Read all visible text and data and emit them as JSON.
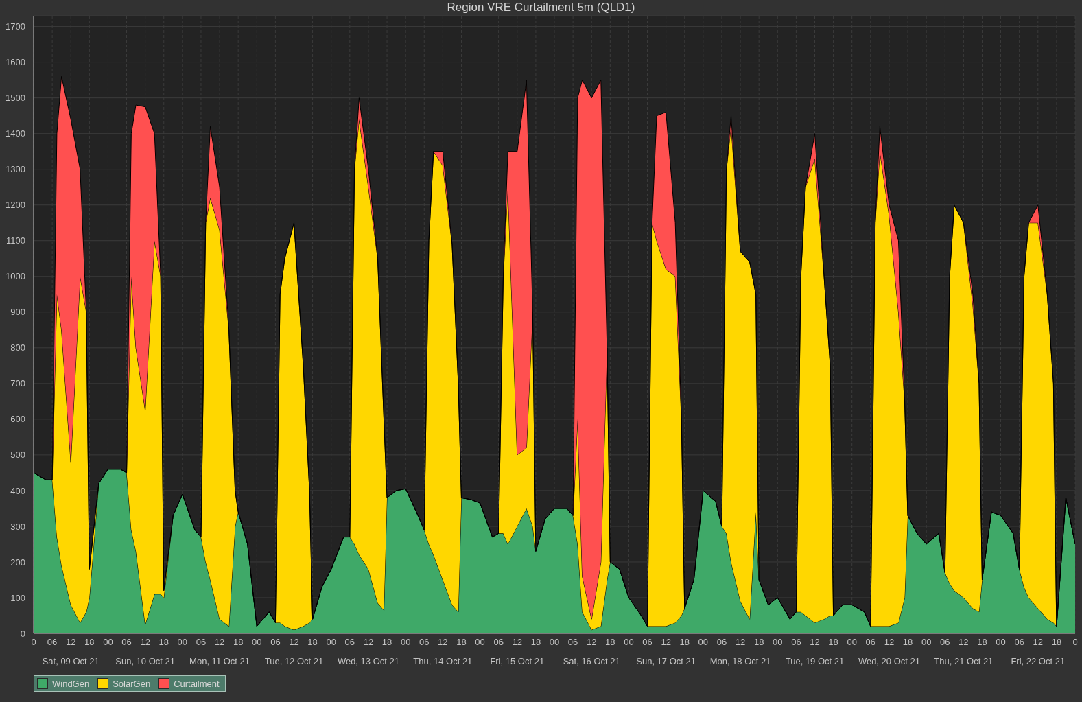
{
  "chart_data": {
    "type": "area",
    "title": "Region VRE Curtailment 5m (QLD1)",
    "stacked": true,
    "grid": true,
    "legend": "bottom left",
    "x": [
      "--10-09T00:00",
      "--10-09T04:00",
      "--10-09T06:00",
      "--10-09T07:30",
      "--10-09T09:00",
      "--10-09T12:00",
      "--10-09T15:00",
      "--10-09T17:00",
      "--10-09T18:00",
      "--10-09T21:00",
      "--10-10T00:00",
      "--10-10T04:00",
      "--10-10T06:00",
      "--10-10T07:30",
      "--10-10T09:00",
      "--10-10T12:00",
      "--10-10T15:00",
      "--10-10T17:00",
      "--10-10T18:00",
      "--10-10T21:00",
      "--10-11T00:00",
      "--10-11T04:00",
      "--10-11T06:00",
      "--10-11T07:30",
      "--10-11T09:00",
      "--10-11T12:00",
      "--10-11T15:00",
      "--10-11T17:00",
      "--10-11T18:00",
      "--10-11T21:00",
      "--10-12T00:00",
      "--10-12T04:00",
      "--10-12T06:00",
      "--10-12T07:30",
      "--10-12T09:00",
      "--10-12T12:00",
      "--10-12T15:00",
      "--10-12T17:00",
      "--10-12T18:00",
      "--10-12T21:00",
      "--10-13T00:00",
      "--10-13T04:00",
      "--10-13T06:00",
      "--10-13T07:30",
      "--10-13T09:00",
      "--10-13T12:00",
      "--10-13T15:00",
      "--10-13T17:00",
      "--10-13T18:00",
      "--10-13T21:00",
      "--10-14T00:00",
      "--10-14T04:00",
      "--10-14T06:00",
      "--10-14T07:30",
      "--10-14T09:00",
      "--10-14T12:00",
      "--10-14T15:00",
      "--10-14T17:00",
      "--10-14T18:00",
      "--10-14T21:00",
      "--10-15T00:00",
      "--10-15T04:00",
      "--10-15T06:00",
      "--10-15T07:30",
      "--10-15T09:00",
      "--10-15T12:00",
      "--10-15T15:00",
      "--10-15T17:00",
      "--10-15T18:00",
      "--10-15T21:00",
      "--10-16T00:00",
      "--10-16T04:00",
      "--10-16T06:00",
      "--10-16T07:30",
      "--10-16T09:00",
      "--10-16T12:00",
      "--10-16T15:00",
      "--10-16T17:00",
      "--10-16T18:00",
      "--10-16T21:00",
      "--10-17T00:00",
      "--10-17T04:00",
      "--10-17T06:00",
      "--10-17T07:30",
      "--10-17T09:00",
      "--10-17T12:00",
      "--10-17T15:00",
      "--10-17T17:00",
      "--10-17T18:00",
      "--10-17T21:00",
      "--10-18T00:00",
      "--10-18T04:00",
      "--10-18T06:00",
      "--10-18T07:30",
      "--10-18T09:00",
      "--10-18T12:00",
      "--10-18T15:00",
      "--10-18T17:00",
      "--10-18T18:00",
      "--10-18T21:00",
      "--10-19T00:00",
      "--10-19T04:00",
      "--10-19T06:00",
      "--10-19T07:30",
      "--10-19T09:00",
      "--10-19T12:00",
      "--10-19T15:00",
      "--10-19T17:00",
      "--10-19T18:00",
      "--10-19T21:00",
      "--10-20T00:00",
      "--10-20T04:00",
      "--10-20T06:00",
      "--10-20T07:30",
      "--10-20T09:00",
      "--10-20T12:00",
      "--10-20T15:00",
      "--10-20T17:00",
      "--10-20T18:00",
      "--10-20T21:00",
      "--10-21T00:00",
      "--10-21T04:00",
      "--10-21T06:00",
      "--10-21T07:30",
      "--10-21T09:00",
      "--10-21T12:00",
      "--10-21T15:00",
      "--10-21T17:00",
      "--10-21T18:00",
      "--10-21T21:00",
      "--10-22T00:00",
      "--10-22T04:00",
      "--10-22T06:00",
      "--10-22T07:30",
      "--10-22T09:00",
      "--10-22T12:00",
      "--10-22T15:00",
      "--10-22T17:00",
      "--10-22T18:00",
      "--10-22T21:00",
      "--10-23T00:00"
    ],
    "series": [
      {
        "name": "WindGen",
        "color": "#3fa968",
        "values": [
          450,
          430,
          430,
          270,
          190,
          80,
          30,
          60,
          100,
          420,
          460,
          460,
          450,
          290,
          230,
          25,
          110,
          110,
          100,
          330,
          390,
          290,
          270,
          200,
          150,
          40,
          20,
          300,
          340,
          250,
          20,
          60,
          30,
          30,
          20,
          10,
          20,
          30,
          40,
          130,
          180,
          270,
          270,
          250,
          220,
          180,
          85,
          65,
          380,
          400,
          405,
          330,
          290,
          250,
          220,
          150,
          80,
          60,
          380,
          375,
          365,
          270,
          280,
          280,
          250,
          300,
          350,
          300,
          230,
          320,
          350,
          350,
          330,
          250,
          60,
          10,
          20,
          150,
          200,
          180,
          100,
          50,
          20,
          20,
          20,
          20,
          30,
          50,
          70,
          150,
          400,
          370,
          300,
          280,
          200,
          90,
          40,
          340,
          150,
          80,
          100,
          40,
          60,
          60,
          50,
          30,
          40,
          50,
          50,
          80,
          80,
          60,
          20,
          20,
          20,
          20,
          30,
          100,
          330,
          280,
          250,
          280,
          170,
          140,
          120,
          100,
          70,
          60,
          150,
          340,
          330,
          280,
          180,
          130,
          100,
          70,
          40,
          30,
          20,
          380,
          250
        ]
      },
      {
        "name": "SolarGen",
        "color": "#ffd700",
        "values": [
          0,
          0,
          0,
          680,
          660,
          400,
          970,
          840,
          80,
          0,
          0,
          0,
          0,
          710,
          570,
          600,
          990,
          890,
          20,
          0,
          0,
          0,
          0,
          950,
          1070,
          1090,
          830,
          100,
          0,
          0,
          0,
          0,
          0,
          920,
          1030,
          1140,
          730,
          370,
          0,
          0,
          0,
          0,
          0,
          1050,
          1220,
          1070,
          965,
          535,
          0,
          0,
          0,
          0,
          0,
          850,
          1130,
          1160,
          1010,
          640,
          0,
          0,
          0,
          0,
          0,
          720,
          1000,
          200,
          170,
          600,
          0,
          0,
          0,
          0,
          0,
          350,
          100,
          30,
          180,
          650,
          0,
          0,
          0,
          0,
          0,
          1130,
          1080,
          1000,
          970,
          550,
          0,
          0,
          0,
          0,
          0,
          1020,
          1220,
          980,
          1000,
          610,
          0,
          0,
          0,
          0,
          0,
          940,
          1200,
          1300,
          960,
          700,
          0,
          0,
          0,
          0,
          0,
          1130,
          1330,
          1150,
          870,
          550,
          0,
          0,
          0,
          0,
          0,
          860,
          1080,
          1050,
          850,
          640,
          0,
          0,
          0,
          0,
          0,
          870,
          1050,
          1080,
          910,
          670,
          0,
          0,
          0
        ]
      },
      {
        "name": "Curtailment",
        "color": "#ff5050",
        "values": [
          0,
          0,
          0,
          450,
          710,
          960,
          300,
          0,
          0,
          0,
          0,
          0,
          0,
          400,
          680,
          850,
          300,
          0,
          0,
          0,
          0,
          0,
          0,
          0,
          200,
          120,
          0,
          0,
          0,
          0,
          0,
          0,
          0,
          0,
          0,
          0,
          0,
          0,
          0,
          0,
          0,
          0,
          0,
          0,
          60,
          50,
          0,
          0,
          0,
          0,
          0,
          0,
          0,
          0,
          0,
          40,
          0,
          0,
          0,
          0,
          0,
          0,
          0,
          0,
          100,
          850,
          1030,
          0,
          0,
          0,
          0,
          0,
          0,
          900,
          1390,
          1460,
          1350,
          0,
          0,
          0,
          0,
          0,
          0,
          0,
          350,
          440,
          150,
          0,
          0,
          0,
          0,
          0,
          0,
          0,
          30,
          0,
          0,
          0,
          0,
          0,
          0,
          0,
          0,
          0,
          0,
          70,
          0,
          0,
          0,
          0,
          0,
          0,
          0,
          0,
          70,
          30,
          200,
          0,
          0,
          0,
          0,
          0,
          0,
          0,
          0,
          0,
          30,
          0,
          0,
          0,
          0,
          0,
          0,
          0,
          0,
          50,
          0,
          0,
          0,
          0,
          0
        ]
      }
    ],
    "xlim": [
      "--10-09T00:00",
      "--10-23T00:00"
    ],
    "xticks": [
      {
        "value": "--10-09T00:00",
        "label": "0"
      },
      {
        "value": "--10-09T06:00",
        "label": "06"
      },
      {
        "value": "--10-09T12:00",
        "label": "12"
      },
      {
        "value": "--10-09T18:00",
        "label": "18"
      },
      {
        "value": "--10-10T00:00",
        "label": "00"
      },
      {
        "value": "--10-10T06:00",
        "label": "06"
      },
      {
        "value": "--10-10T12:00",
        "label": "12"
      },
      {
        "value": "--10-10T18:00",
        "label": "18"
      },
      {
        "value": "--10-11T00:00",
        "label": "00"
      },
      {
        "value": "--10-11T06:00",
        "label": "06"
      },
      {
        "value": "--10-11T12:00",
        "label": "12"
      },
      {
        "value": "--10-11T18:00",
        "label": "18"
      },
      {
        "value": "--10-12T00:00",
        "label": "00"
      },
      {
        "value": "--10-12T06:00",
        "label": "06"
      },
      {
        "value": "--10-12T12:00",
        "label": "12"
      },
      {
        "value": "--10-12T18:00",
        "label": "18"
      },
      {
        "value": "--10-13T00:00",
        "label": "00"
      },
      {
        "value": "--10-13T06:00",
        "label": "06"
      },
      {
        "value": "--10-13T12:00",
        "label": "12"
      },
      {
        "value": "--10-13T18:00",
        "label": "18"
      },
      {
        "value": "--10-14T00:00",
        "label": "00"
      },
      {
        "value": "--10-14T06:00",
        "label": "06"
      },
      {
        "value": "--10-14T12:00",
        "label": "12"
      },
      {
        "value": "--10-14T18:00",
        "label": "18"
      },
      {
        "value": "--10-15T00:00",
        "label": "00"
      },
      {
        "value": "--10-15T06:00",
        "label": "06"
      },
      {
        "value": "--10-15T12:00",
        "label": "12"
      },
      {
        "value": "--10-15T18:00",
        "label": "18"
      },
      {
        "value": "--10-16T00:00",
        "label": "00"
      },
      {
        "value": "--10-16T06:00",
        "label": "06"
      },
      {
        "value": "--10-16T12:00",
        "label": "12"
      },
      {
        "value": "--10-16T18:00",
        "label": "18"
      },
      {
        "value": "--10-17T00:00",
        "label": "00"
      },
      {
        "value": "--10-17T06:00",
        "label": "06"
      },
      {
        "value": "--10-17T12:00",
        "label": "12"
      },
      {
        "value": "--10-17T18:00",
        "label": "18"
      },
      {
        "value": "--10-18T00:00",
        "label": "00"
      },
      {
        "value": "--10-18T06:00",
        "label": "06"
      },
      {
        "value": "--10-18T12:00",
        "label": "12"
      },
      {
        "value": "--10-18T18:00",
        "label": "18"
      },
      {
        "value": "--10-19T00:00",
        "label": "00"
      },
      {
        "value": "--10-19T06:00",
        "label": "06"
      },
      {
        "value": "--10-19T12:00",
        "label": "12"
      },
      {
        "value": "--10-19T18:00",
        "label": "18"
      },
      {
        "value": "--10-20T00:00",
        "label": "00"
      },
      {
        "value": "--10-20T06:00",
        "label": "06"
      },
      {
        "value": "--10-20T12:00",
        "label": "12"
      },
      {
        "value": "--10-20T18:00",
        "label": "18"
      },
      {
        "value": "--10-21T00:00",
        "label": "00"
      },
      {
        "value": "--10-21T06:00",
        "label": "06"
      },
      {
        "value": "--10-21T12:00",
        "label": "12"
      },
      {
        "value": "--10-21T18:00",
        "label": "18"
      },
      {
        "value": "--10-22T00:00",
        "label": "00"
      },
      {
        "value": "--10-22T06:00",
        "label": "06"
      },
      {
        "value": "--10-22T12:00",
        "label": "12"
      },
      {
        "value": "--10-22T18:00",
        "label": "18"
      },
      {
        "value": "--10-23T00:00",
        "label": "0"
      }
    ],
    "x2lim": [
      "--10-09T00:00",
      "--10-23T00:00"
    ],
    "x2ticks": [
      {
        "value": "--10-09T12:00",
        "label": "Sat, 09 Oct 21"
      },
      {
        "value": "--10-10T12:00",
        "label": "Sun, 10 Oct 21"
      },
      {
        "value": "--10-11T12:00",
        "label": "Mon, 11 Oct 21"
      },
      {
        "value": "--10-12T12:00",
        "label": "Tue, 12 Oct 21"
      },
      {
        "value": "--10-13T12:00",
        "label": "Wed, 13 Oct 21"
      },
      {
        "value": "--10-14T12:00",
        "label": "Thu, 14 Oct 21"
      },
      {
        "value": "--10-15T12:00",
        "label": "Fri, 15 Oct 21"
      },
      {
        "value": "--10-16T12:00",
        "label": "Sat, 16 Oct 21"
      },
      {
        "value": "--10-17T12:00",
        "label": "Sun, 17 Oct 21"
      },
      {
        "value": "--10-18T12:00",
        "label": "Mon, 18 Oct 21"
      },
      {
        "value": "--10-19T12:00",
        "label": "Tue, 19 Oct 21"
      },
      {
        "value": "--10-20T12:00",
        "label": "Wed, 20 Oct 21"
      },
      {
        "value": "--10-21T12:00",
        "label": "Thu, 21 Oct 21"
      },
      {
        "value": "--10-22T12:00",
        "label": "Fri, 22 Oct 21"
      }
    ],
    "ylim": [
      0,
      1730
    ],
    "yticks": [
      0,
      100,
      200,
      300,
      400,
      500,
      600,
      700,
      800,
      900,
      1000,
      1100,
      1200,
      1300,
      1400,
      1500,
      1600,
      1700
    ]
  }
}
